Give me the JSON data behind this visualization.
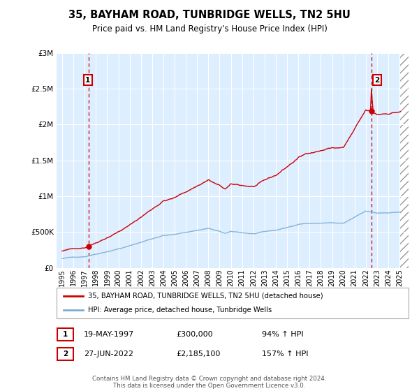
{
  "title": "35, BAYHAM ROAD, TUNBRIDGE WELLS, TN2 5HU",
  "subtitle": "Price paid vs. HM Land Registry's House Price Index (HPI)",
  "legend_line1": "35, BAYHAM ROAD, TUNBRIDGE WELLS, TN2 5HU (detached house)",
  "legend_line2": "HPI: Average price, detached house, Tunbridge Wells",
  "annotation1_label": "1",
  "annotation1_date": "19-MAY-1997",
  "annotation1_price": "£300,000",
  "annotation1_hpi": "94% ↑ HPI",
  "annotation2_label": "2",
  "annotation2_date": "27-JUN-2022",
  "annotation2_price": "£2,185,100",
  "annotation2_hpi": "157% ↑ HPI",
  "footer": "Contains HM Land Registry data © Crown copyright and database right 2024.\nThis data is licensed under the Open Government Licence v3.0.",
  "price_color": "#cc0000",
  "hpi_color": "#7aadd4",
  "background_color": "#ddeeff",
  "annotation_box_color": "#cc0000",
  "xlim_start": 1994.5,
  "xlim_end": 2025.8,
  "ylim_min": 0,
  "ylim_max": 3000000,
  "sale1_year": 1997.38,
  "sale1_price": 300000,
  "sale2_year": 2022.49,
  "sale2_price": 2185100,
  "xtick_years": [
    1995,
    1996,
    1997,
    1998,
    1999,
    2000,
    2001,
    2002,
    2003,
    2004,
    2005,
    2006,
    2007,
    2008,
    2009,
    2010,
    2011,
    2012,
    2013,
    2014,
    2015,
    2016,
    2017,
    2018,
    2019,
    2020,
    2021,
    2022,
    2023,
    2024,
    2025
  ]
}
